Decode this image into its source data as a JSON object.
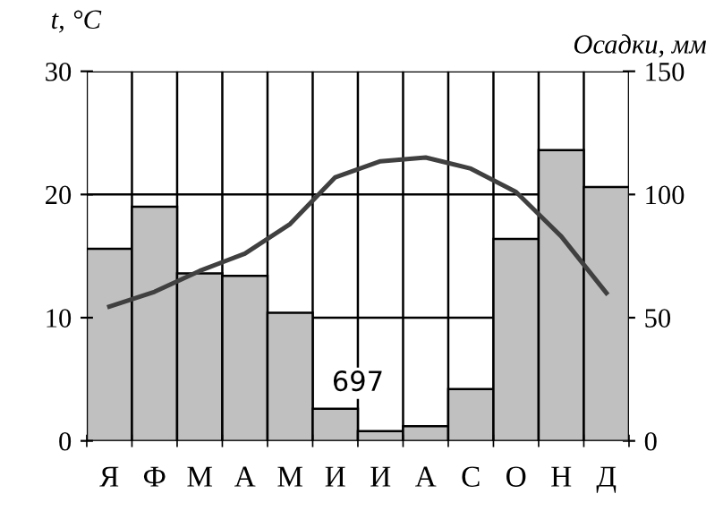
{
  "chart_data": {
    "type": "bar",
    "categories": [
      "Я",
      "Ф",
      "М",
      "А",
      "М",
      "И",
      "И",
      "А",
      "С",
      "О",
      "Н",
      "Д"
    ],
    "series": [
      {
        "axis": "y2",
        "color": "#c0c0c0",
        "values": [
          78,
          95,
          68,
          67,
          52,
          13,
          4,
          6,
          21,
          82,
          118,
          103
        ]
      },
      {
        "type": "line",
        "axis": "y",
        "color": "#404040",
        "values": [
          10.9,
          12.1,
          13.8,
          15.2,
          17.6,
          21.4,
          22.7,
          23,
          22.1,
          20.2,
          16.6,
          12
        ]
      }
    ],
    "ylabel": "t, °C",
    "y2label": "Осадки, мм",
    "ylim": [
      0,
      30
    ],
    "yticks": [
      0,
      10,
      20,
      30
    ],
    "y2lim": [
      0,
      150
    ],
    "y2ticks": [
      0,
      50,
      100,
      150
    ],
    "grid": true,
    "marker": "none",
    "line_style": "solid",
    "annotations": [
      "697"
    ]
  }
}
